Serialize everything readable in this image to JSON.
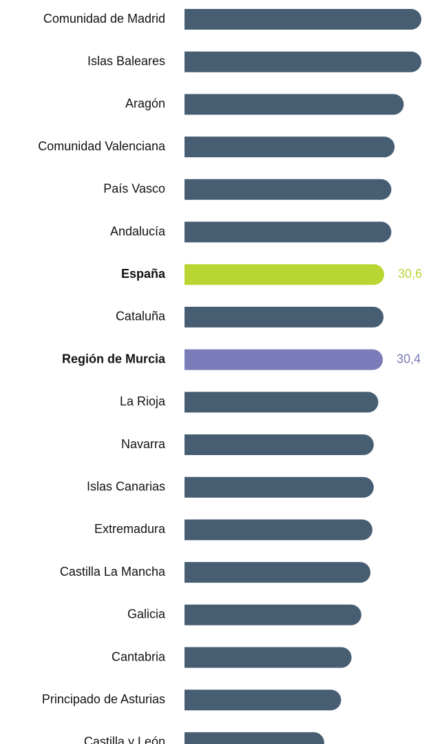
{
  "chart_data": {
    "type": "bar",
    "orientation": "horizontal",
    "categories": [
      "Comunidad de Madrid",
      "Islas Baleares",
      "Aragón",
      "Comunidad Valenciana",
      "País Vasco",
      "Andalucía",
      "España",
      "Cataluña",
      "Región de Murcia",
      "La Rioja",
      "Navarra",
      "Islas Canarias",
      "Extremadura",
      "Castilla La Mancha",
      "Galicia",
      "Cantabria",
      "Principado de Asturias",
      "Castilla y León"
    ],
    "values": [
      36.3,
      36.3,
      33.6,
      32.2,
      31.7,
      31.7,
      30.6,
      30.5,
      30.4,
      29.7,
      29.0,
      29.0,
      28.8,
      28.5,
      27.1,
      25.6,
      24.0,
      21.4
    ],
    "value_labels": [
      null,
      null,
      null,
      null,
      null,
      null,
      "30,6",
      null,
      "30,4",
      null,
      null,
      null,
      null,
      null,
      null,
      null,
      null,
      null
    ],
    "color": "#465d72",
    "colors": [
      "#465d72",
      "#465d72",
      "#465d72",
      "#465d72",
      "#465d72",
      "#465d72",
      "#b9d532",
      "#465d72",
      "#7a7cba",
      "#465d72",
      "#465d72",
      "#465d72",
      "#465d72",
      "#465d72",
      "#465d72",
      "#465d72",
      "#465d72",
      "#465d72"
    ]
  }
}
